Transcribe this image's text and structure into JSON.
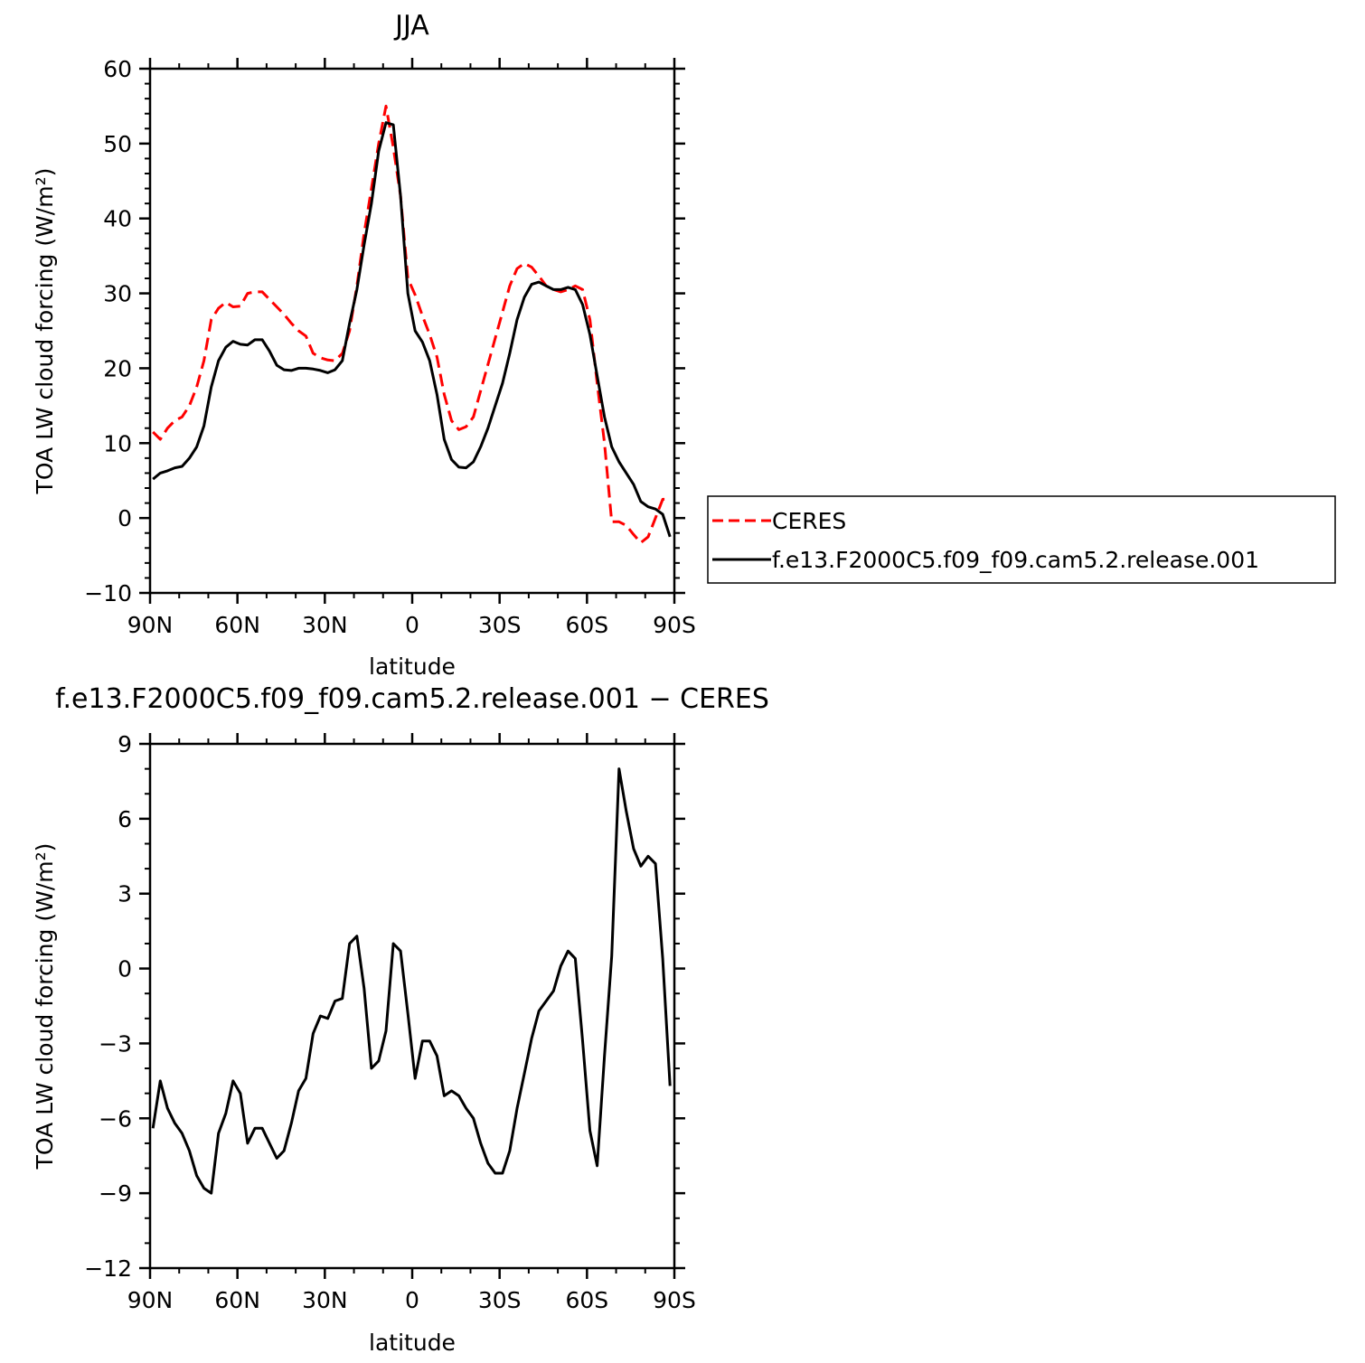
{
  "chart_data": [
    {
      "type": "line",
      "title": "JJA",
      "xlabel": "latitude",
      "ylabel": "TOA LW cloud forcing (W/m²)",
      "xlim": [
        90,
        -90
      ],
      "ylim": [
        -10,
        60
      ],
      "x_ticks": [
        90,
        60,
        30,
        0,
        -30,
        -60,
        -90
      ],
      "x_tick_labels": [
        "90N",
        "60N",
        "30N",
        "0",
        "30S",
        "60S",
        "90S"
      ],
      "y_ticks": [
        -10,
        0,
        10,
        20,
        30,
        40,
        50,
        60
      ],
      "y_tick_labels": [
        "−10",
        "0",
        "10",
        "20",
        "30",
        "40",
        "50",
        "60"
      ],
      "legend_position": "right",
      "series": [
        {
          "name": "CERES",
          "color": "#ff0000",
          "dash": "dashed",
          "x": [
            89,
            86.5,
            84,
            81.5,
            79,
            76.5,
            74,
            71.5,
            69,
            66.5,
            64,
            61.5,
            59,
            56.5,
            54,
            51.5,
            49,
            46.5,
            44,
            41.5,
            39,
            36.5,
            34,
            31.5,
            29,
            26.5,
            24,
            21.5,
            19,
            16.5,
            14,
            11.5,
            9,
            6.5,
            4,
            1.5,
            -1,
            -3.5,
            -6,
            -8.5,
            -11,
            -13.5,
            -16,
            -18.5,
            -21,
            -23.5,
            -26,
            -28.5,
            -31,
            -33.5,
            -36,
            -38.5,
            -41,
            -43.5,
            -46,
            -48.5,
            -51,
            -53.5,
            -56,
            -58.5,
            -61,
            -63.5,
            -66,
            -68.5,
            -71,
            -73.5,
            -76,
            -78.5,
            -81,
            -83.5,
            -86,
            -88.5
          ],
          "y": [
            11.5,
            10.5,
            12.0,
            13.0,
            13.5,
            15.0,
            17.5,
            21.0,
            26.5,
            28.0,
            28.8,
            28.2,
            28.3,
            30.0,
            30.2,
            30.2,
            29.2,
            28.2,
            27.2,
            26.0,
            25.0,
            24.3,
            22.0,
            21.4,
            21.1,
            21.0,
            22.0,
            25.0,
            31.0,
            38.0,
            44.0,
            50.0,
            55.0,
            49.5,
            43.0,
            32.0,
            29.8,
            27.0,
            24.5,
            21.5,
            16.5,
            13.0,
            11.8,
            12.2,
            13.5,
            17.0,
            20.5,
            24.0,
            27.5,
            31.0,
            33.3,
            34.0,
            33.5,
            32.3,
            31.0,
            30.5,
            30.2,
            30.5,
            31.0,
            30.5,
            26.5,
            18.0,
            10.0,
            -0.5,
            -0.5,
            -1.0,
            -2.2,
            -3.3,
            -2.5,
            0.0,
            2.5,
            2.5
          ]
        },
        {
          "name": "f.e13.F2000C5.f09_f09.cam5.2.release.001",
          "color": "#000000",
          "dash": "solid",
          "x": [
            89,
            86.5,
            84,
            81.5,
            79,
            76.5,
            74,
            71.5,
            69,
            66.5,
            64,
            61.5,
            59,
            56.5,
            54,
            51.5,
            49,
            46.5,
            44,
            41.5,
            39,
            36.5,
            34,
            31.5,
            29,
            26.5,
            24,
            21.5,
            19,
            16.5,
            14,
            11.5,
            9,
            6.5,
            4,
            1.5,
            -1,
            -3.5,
            -6,
            -8.5,
            -11,
            -13.5,
            -16,
            -18.5,
            -21,
            -23.5,
            -26,
            -28.5,
            -31,
            -33.5,
            -36,
            -38.5,
            -41,
            -43.5,
            -46,
            -48.5,
            -51,
            -53.5,
            -56,
            -58.5,
            -61,
            -63.5,
            -66,
            -68.5,
            -71,
            -73.5,
            -76,
            -78.5,
            -81,
            -83.5,
            -86,
            -88.5
          ],
          "y": [
            5.2,
            6.0,
            6.3,
            6.7,
            6.9,
            8.0,
            9.5,
            12.3,
            17.5,
            21.0,
            22.8,
            23.6,
            23.2,
            23.1,
            23.8,
            23.8,
            22.3,
            20.4,
            19.8,
            19.7,
            20.0,
            20.0,
            19.9,
            19.7,
            19.4,
            19.8,
            21.0,
            26.0,
            30.5,
            36.5,
            42.0,
            49.0,
            52.8,
            52.5,
            43.0,
            30.0,
            25.0,
            23.5,
            21.0,
            16.5,
            10.5,
            7.8,
            6.8,
            6.7,
            7.5,
            9.5,
            12.0,
            15.0,
            18.0,
            22.0,
            26.5,
            29.5,
            31.2,
            31.5,
            31.0,
            30.5,
            30.5,
            30.8,
            30.5,
            28.5,
            24.5,
            19.0,
            13.5,
            9.5,
            7.5,
            6.0,
            4.5,
            2.2,
            1.5,
            1.2,
            0.5,
            -2.5
          ]
        }
      ]
    },
    {
      "type": "line",
      "title": "f.e13.F2000C5.f09_f09.cam5.2.release.001 − CERES",
      "xlabel": "latitude",
      "ylabel": "TOA LW cloud forcing (W/m²)",
      "xlim": [
        90,
        -90
      ],
      "ylim": [
        -12,
        9
      ],
      "x_ticks": [
        90,
        60,
        30,
        0,
        -30,
        -60,
        -90
      ],
      "x_tick_labels": [
        "90N",
        "60N",
        "30N",
        "0",
        "30S",
        "60S",
        "90S"
      ],
      "y_ticks": [
        -12,
        -9,
        -6,
        -3,
        0,
        3,
        6,
        9
      ],
      "y_tick_labels": [
        "−12",
        "−9",
        "−6",
        "−3",
        "0",
        "3",
        "6",
        "9"
      ],
      "series": [
        {
          "color": "#000000",
          "dash": "solid",
          "x": [
            89,
            86.5,
            84,
            81.5,
            79,
            76.5,
            74,
            71.5,
            69,
            66.5,
            64,
            61.5,
            59,
            56.5,
            54,
            51.5,
            49,
            46.5,
            44,
            41.5,
            39,
            36.5,
            34,
            31.5,
            29,
            26.5,
            24,
            21.5,
            19,
            16.5,
            14,
            11.5,
            9,
            6.5,
            4,
            1.5,
            -1,
            -3.5,
            -6,
            -8.5,
            -11,
            -13.5,
            -16,
            -18.5,
            -21,
            -23.5,
            -26,
            -28.5,
            -31,
            -33.5,
            -36,
            -38.5,
            -41,
            -43.5,
            -46,
            -48.5,
            -51,
            -53.5,
            -56,
            -58.5,
            -61,
            -63.5,
            -66,
            -68.5,
            -71,
            -73.5,
            -76,
            -78.5,
            -81,
            -83.5,
            -86,
            -88.5
          ],
          "y": [
            -6.4,
            -4.5,
            -5.6,
            -6.2,
            -6.6,
            -7.3,
            -8.3,
            -8.8,
            -9.0,
            -6.6,
            -5.8,
            -4.5,
            -5.0,
            -7.0,
            -6.4,
            -6.4,
            -7.0,
            -7.6,
            -7.3,
            -6.2,
            -4.9,
            -4.4,
            -2.6,
            -1.9,
            -2.0,
            -1.3,
            -1.2,
            1.0,
            1.3,
            -0.8,
            -4.0,
            -3.7,
            -2.5,
            1.0,
            0.7,
            -1.8,
            -4.4,
            -2.9,
            -2.9,
            -3.5,
            -5.1,
            -4.9,
            -5.1,
            -5.6,
            -6.0,
            -7.0,
            -7.8,
            -8.2,
            -8.2,
            -7.3,
            -5.6,
            -4.2,
            -2.8,
            -1.7,
            -1.3,
            -0.9,
            0.1,
            0.7,
            0.4,
            -2.9,
            -6.5,
            -7.9,
            -3.5,
            0.5,
            8.0,
            6.3,
            4.8,
            4.1,
            4.5,
            4.2,
            0.4,
            -4.7
          ]
        }
      ]
    }
  ]
}
